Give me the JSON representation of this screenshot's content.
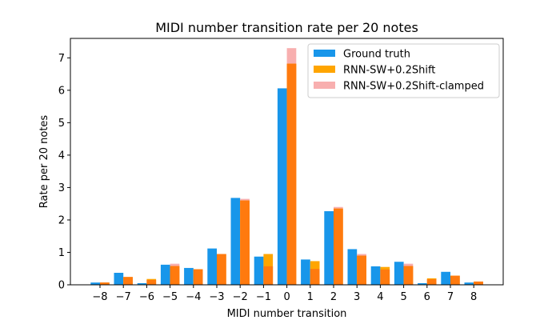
{
  "chart_data": {
    "type": "bar",
    "title": "MIDI number transition rate per 20 notes",
    "xlabel": "MIDI number transition",
    "ylabel": "Rate per 20 notes",
    "categories": [
      "−8",
      "−7",
      "−6",
      "−5",
      "−4",
      "−3",
      "−2",
      "−1",
      "0",
      "1",
      "2",
      "3",
      "4",
      "5",
      "6",
      "7",
      "8"
    ],
    "ylim": [
      0,
      7.6
    ],
    "yticks": [
      "0",
      "1",
      "2",
      "3",
      "4",
      "5",
      "6",
      "7"
    ],
    "legend_position": "top-right",
    "grid": false,
    "series": [
      {
        "name": "Ground truth",
        "color": "#1896ea",
        "values": [
          0.07,
          0.37,
          0.05,
          0.62,
          0.52,
          1.12,
          2.68,
          0.87,
          6.06,
          0.78,
          2.27,
          1.1,
          0.57,
          0.71,
          0.05,
          0.4,
          0.07
        ]
      },
      {
        "name": "RNN-SW+0.2Shift",
        "color": "#ffa500",
        "values": [
          0.07,
          0.24,
          0.18,
          0.58,
          0.48,
          0.95,
          2.6,
          0.95,
          6.82,
          0.73,
          2.35,
          0.9,
          0.55,
          0.58,
          0.2,
          0.28,
          0.1
        ]
      },
      {
        "name": "RNN-SW+0.2Shift-clamped",
        "color": "#f8afaf",
        "values": [
          0.07,
          0.24,
          0.15,
          0.65,
          0.48,
          0.95,
          2.65,
          0.57,
          7.3,
          0.49,
          2.4,
          0.95,
          0.47,
          0.65,
          0.17,
          0.28,
          0.1
        ]
      }
    ]
  }
}
